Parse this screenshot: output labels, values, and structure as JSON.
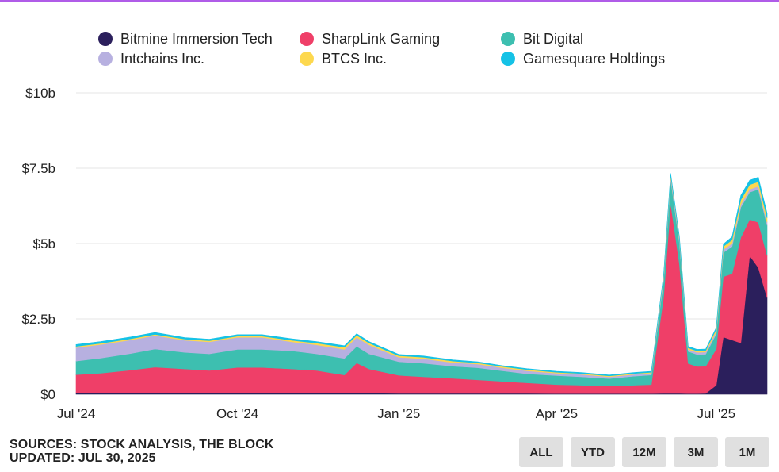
{
  "chart_data": {
    "type": "area",
    "stacked": true,
    "title": "",
    "xlabel": "",
    "ylabel": "",
    "ylim": [
      0,
      10
    ],
    "y_ticks": [
      "$0",
      "$2.5b",
      "$5b",
      "$7.5b",
      "$10b"
    ],
    "y_tick_values": [
      0,
      2.5,
      5,
      7.5,
      10
    ],
    "x_ticks": [
      "Jul '24",
      "Oct '24",
      "Jan '25",
      "Apr '25",
      "Jul '25"
    ],
    "x_tick_dates": [
      "2024-07-01",
      "2024-10-01",
      "2025-01-01",
      "2025-04-01",
      "2025-07-01"
    ],
    "x_range": [
      "2024-07-01",
      "2025-07-30"
    ],
    "grid": "horizontal",
    "legend_position": "top",
    "dates": [
      "2024-07-01",
      "2024-07-15",
      "2024-08-01",
      "2024-08-15",
      "2024-09-01",
      "2024-09-15",
      "2024-10-01",
      "2024-10-15",
      "2024-11-01",
      "2024-11-15",
      "2024-12-01",
      "2024-12-08",
      "2024-12-15",
      "2025-01-01",
      "2025-01-15",
      "2025-02-01",
      "2025-02-15",
      "2025-03-01",
      "2025-03-15",
      "2025-04-01",
      "2025-04-15",
      "2025-05-01",
      "2025-05-15",
      "2025-05-25",
      "2025-06-01",
      "2025-06-05",
      "2025-06-10",
      "2025-06-15",
      "2025-06-20",
      "2025-06-25",
      "2025-07-01",
      "2025-07-05",
      "2025-07-10",
      "2025-07-15",
      "2025-07-20",
      "2025-07-25",
      "2025-07-30"
    ],
    "series": [
      {
        "name": "Bitmine Immersion Tech",
        "color": "#2b1f5c",
        "values": [
          0.05,
          0.05,
          0.05,
          0.05,
          0.04,
          0.04,
          0.04,
          0.04,
          0.04,
          0.04,
          0.04,
          0.04,
          0.04,
          0.03,
          0.03,
          0.03,
          0.03,
          0.03,
          0.03,
          0.02,
          0.02,
          0.02,
          0.02,
          0.02,
          0.03,
          0.03,
          0.03,
          0.02,
          0.02,
          0.03,
          0.3,
          1.9,
          1.8,
          1.7,
          4.6,
          4.2,
          3.2
        ]
      },
      {
        "name": "SharpLink Gaming",
        "color": "#ef3f68",
        "values": [
          0.6,
          0.65,
          0.75,
          0.85,
          0.8,
          0.75,
          0.85,
          0.85,
          0.8,
          0.75,
          0.6,
          1.0,
          0.8,
          0.6,
          0.55,
          0.5,
          0.45,
          0.4,
          0.35,
          0.3,
          0.28,
          0.25,
          0.28,
          0.3,
          3.2,
          6.3,
          4.3,
          1.0,
          0.9,
          0.9,
          1.2,
          2.0,
          2.2,
          3.5,
          1.2,
          1.5,
          1.4
        ]
      },
      {
        "name": "Bit Digital",
        "color": "#3dbfb0",
        "values": [
          0.45,
          0.5,
          0.55,
          0.6,
          0.55,
          0.55,
          0.6,
          0.6,
          0.6,
          0.55,
          0.55,
          0.55,
          0.5,
          0.45,
          0.45,
          0.4,
          0.4,
          0.35,
          0.3,
          0.3,
          0.28,
          0.25,
          0.3,
          0.32,
          0.55,
          0.8,
          0.7,
          0.4,
          0.4,
          0.4,
          0.5,
          0.8,
          0.9,
          1.0,
          0.9,
          1.1,
          1.0
        ]
      },
      {
        "name": "Intchains Inc.",
        "color": "#b7b0e0",
        "values": [
          0.45,
          0.45,
          0.45,
          0.45,
          0.4,
          0.4,
          0.4,
          0.4,
          0.3,
          0.3,
          0.3,
          0.3,
          0.3,
          0.15,
          0.15,
          0.12,
          0.12,
          0.1,
          0.1,
          0.08,
          0.08,
          0.06,
          0.06,
          0.06,
          0.1,
          0.1,
          0.1,
          0.07,
          0.07,
          0.07,
          0.08,
          0.1,
          0.1,
          0.1,
          0.1,
          0.1,
          0.1
        ]
      },
      {
        "name": "BTCS Inc.",
        "color": "#fdd84e",
        "values": [
          0.04,
          0.04,
          0.04,
          0.04,
          0.04,
          0.04,
          0.04,
          0.04,
          0.05,
          0.06,
          0.07,
          0.07,
          0.06,
          0.05,
          0.05,
          0.05,
          0.04,
          0.04,
          0.04,
          0.03,
          0.03,
          0.03,
          0.03,
          0.03,
          0.05,
          0.05,
          0.05,
          0.05,
          0.05,
          0.05,
          0.08,
          0.1,
          0.12,
          0.15,
          0.15,
          0.15,
          0.15
        ]
      },
      {
        "name": "Gamesquare Holdings",
        "color": "#15c2e6",
        "values": [
          0.06,
          0.06,
          0.06,
          0.06,
          0.05,
          0.05,
          0.05,
          0.05,
          0.05,
          0.05,
          0.05,
          0.05,
          0.05,
          0.04,
          0.04,
          0.04,
          0.04,
          0.03,
          0.03,
          0.03,
          0.03,
          0.03,
          0.03,
          0.03,
          0.04,
          0.05,
          0.05,
          0.05,
          0.05,
          0.05,
          0.05,
          0.08,
          0.1,
          0.15,
          0.15,
          0.15,
          0.15
        ]
      }
    ]
  },
  "legend": {
    "items": [
      {
        "label": "Bitmine Immersion Tech",
        "color": "#2b1f5c"
      },
      {
        "label": "SharpLink Gaming",
        "color": "#ef3f68"
      },
      {
        "label": "Bit Digital",
        "color": "#3dbfb0"
      },
      {
        "label": "Intchains Inc.",
        "color": "#b7b0e0"
      },
      {
        "label": "BTCS Inc.",
        "color": "#fdd84e"
      },
      {
        "label": "Gamesquare Holdings",
        "color": "#15c2e6"
      }
    ]
  },
  "footer": {
    "sources": "SOURCES: STOCK ANALYSIS, THE BLOCK",
    "updated": "UPDATED: JUL 30, 2025"
  },
  "range_buttons": [
    "ALL",
    "YTD",
    "12M",
    "3M",
    "1M"
  ],
  "colors": {
    "accent": "#b05ce8",
    "button_bg": "#e0e0e0",
    "grid": "#e6e6e6"
  }
}
